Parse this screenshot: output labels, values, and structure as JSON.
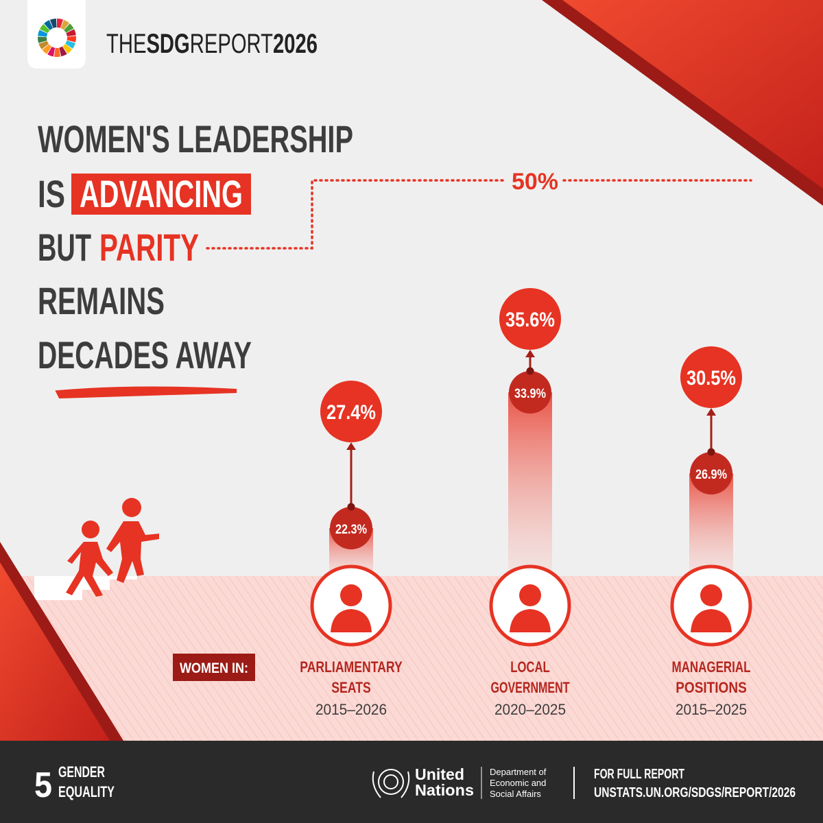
{
  "header": {
    "brand_prefix": "THE",
    "brand_bold": "SDG",
    "brand_mid": "REPORT",
    "brand_year": "2026"
  },
  "headline": {
    "line1": "WOMEN'S LEADERSHIP",
    "line2_a": "IS",
    "line2_b": "ADVANCING",
    "line3_a": "BUT",
    "line3_b": "PARITY",
    "line4": "REMAINS",
    "line5": "DECADES AWAY"
  },
  "parity_label": "50%",
  "women_in": "WOMEN IN:",
  "indicators": [
    {
      "start": "22.3%",
      "end": "27.4%",
      "title_1": "PARLIAMENTARY",
      "title_2": "SEATS",
      "period": "2015–2026"
    },
    {
      "start": "33.9%",
      "end": "35.6%",
      "title_1": "LOCAL",
      "title_2": "GOVERNMENT",
      "period": "2020–2025"
    },
    {
      "start": "26.9%",
      "end": "30.5%",
      "title_1": "MANAGERIAL",
      "title_2": "POSITIONS",
      "period": "2015–2025"
    }
  ],
  "footer": {
    "goal_number": "5",
    "goal_1": "GENDER",
    "goal_2": "EQUALITY",
    "un_1": "United",
    "un_2": "Nations",
    "dept_1": "Department of",
    "dept_2": "Economic and",
    "dept_3": "Social Affairs",
    "report_1": "FOR FULL REPORT",
    "report_2": "UNSTATS.UN.ORG/SDGS/REPORT/2026"
  }
}
